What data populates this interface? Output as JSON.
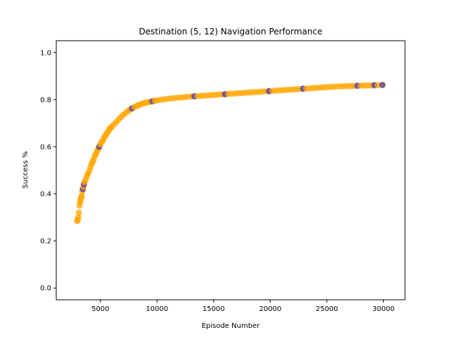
{
  "chart_data": {
    "type": "scatter",
    "title": "Destination (5, 12) Navigation Performance",
    "xlabel": "Episode Number",
    "ylabel": "Success %",
    "xlim": [
      1100,
      31900
    ],
    "ylim": [
      -0.05,
      1.05
    ],
    "x_ticks": [
      5000,
      10000,
      15000,
      20000,
      25000,
      30000
    ],
    "y_ticks": [
      0.0,
      0.2,
      0.4,
      0.6,
      0.8,
      1.0
    ],
    "x_tick_labels": [
      "5000",
      "10000",
      "15000",
      "20000",
      "25000",
      "30000"
    ],
    "y_tick_labels": [
      "0.0",
      "0.2",
      "0.4",
      "0.6",
      "0.8",
      "1.0"
    ],
    "grid": false,
    "colors": {
      "point_fill": "#FFA500",
      "point_highlight": "#6A4C93",
      "axis": "#000000"
    },
    "series": [
      {
        "x": [
          2950,
          3000,
          3050,
          3100,
          3150,
          3200,
          3250,
          3300,
          3350,
          3400,
          3450,
          3500,
          3550,
          3600,
          3700,
          3800,
          3900,
          4000,
          4100,
          4200,
          4300,
          4400,
          4500,
          4600,
          4700,
          4800,
          4900,
          5000,
          5100,
          5200,
          5300,
          5400,
          5500,
          5600,
          5700,
          5800,
          5900,
          6000,
          6200,
          6400,
          6600,
          6800,
          7000,
          7200,
          7400,
          7600,
          7800,
          8000,
          8200,
          8400,
          8600,
          8800,
          9000,
          9200,
          9400,
          9600,
          9800,
          10000,
          10300,
          10600,
          10900,
          11200,
          11500,
          11800,
          12100,
          12400,
          12700,
          13000,
          13300,
          13600,
          13900,
          14200,
          14500,
          14800,
          15100,
          15400,
          15700,
          16000,
          16300,
          16600,
          16900,
          17200,
          17500,
          17800,
          18100,
          18400,
          18700,
          19000,
          19300,
          19600,
          19900,
          20200,
          20500,
          20800,
          21100,
          21400,
          21700,
          22000,
          22300,
          22600,
          22900,
          23200,
          23500,
          23800,
          24100,
          24400,
          24700,
          25000,
          25300,
          25600,
          25900,
          26200,
          26500,
          26800,
          27100,
          27400,
          27700,
          28000,
          28300,
          28600,
          28900,
          29200,
          29500,
          29900
        ],
        "y": [
          0.285,
          0.29,
          0.3,
          0.32,
          0.35,
          0.365,
          0.375,
          0.385,
          0.39,
          0.41,
          0.42,
          0.43,
          0.44,
          0.45,
          0.46,
          0.475,
          0.485,
          0.495,
          0.51,
          0.525,
          0.535,
          0.545,
          0.56,
          0.57,
          0.58,
          0.59,
          0.6,
          0.61,
          0.62,
          0.625,
          0.635,
          0.645,
          0.65,
          0.66,
          0.665,
          0.675,
          0.68,
          0.685,
          0.695,
          0.705,
          0.715,
          0.725,
          0.735,
          0.742,
          0.75,
          0.757,
          0.763,
          0.768,
          0.773,
          0.777,
          0.781,
          0.784,
          0.787,
          0.789,
          0.791,
          0.793,
          0.795,
          0.797,
          0.799,
          0.801,
          0.803,
          0.805,
          0.806,
          0.808,
          0.809,
          0.81,
          0.812,
          0.813,
          0.814,
          0.815,
          0.816,
          0.817,
          0.818,
          0.819,
          0.82,
          0.821,
          0.822,
          0.823,
          0.824,
          0.825,
          0.826,
          0.827,
          0.828,
          0.829,
          0.83,
          0.831,
          0.832,
          0.833,
          0.834,
          0.835,
          0.836,
          0.837,
          0.838,
          0.839,
          0.84,
          0.841,
          0.842,
          0.843,
          0.844,
          0.845,
          0.846,
          0.847,
          0.848,
          0.849,
          0.85,
          0.851,
          0.852,
          0.853,
          0.854,
          0.855,
          0.856,
          0.856,
          0.857,
          0.857,
          0.858,
          0.858,
          0.859,
          0.859,
          0.86,
          0.86,
          0.86,
          0.861,
          0.861,
          0.862
        ],
        "highlight_indices": [
          10,
          12,
          26,
          46,
          55,
          68,
          77,
          90,
          100,
          116,
          121
        ]
      }
    ]
  }
}
